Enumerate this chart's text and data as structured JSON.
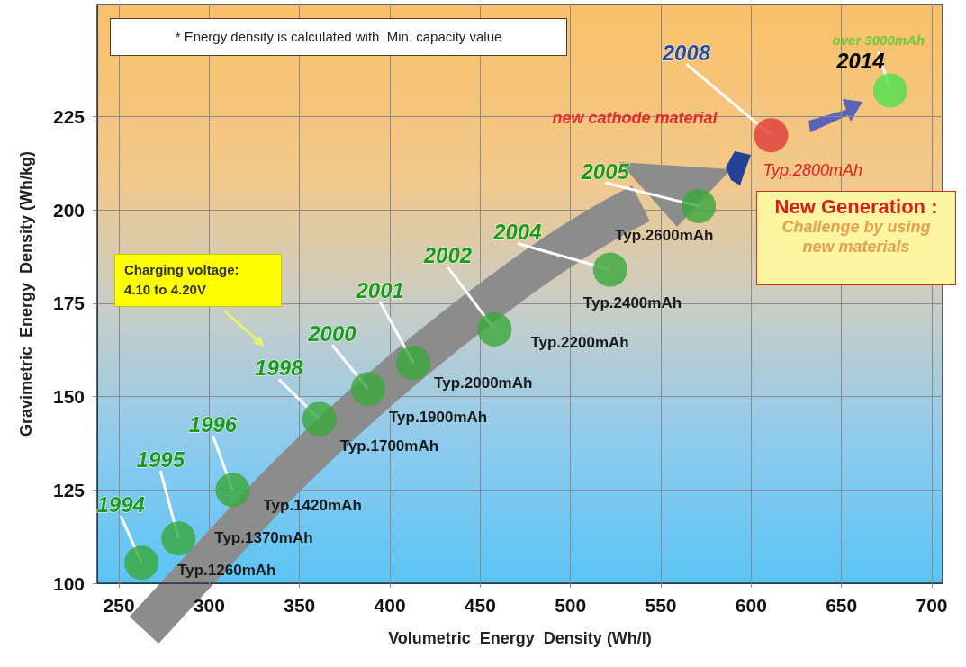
{
  "chart_data": {
    "type": "scatter",
    "xlabel": "Volumetric  Energy  Density (Wh/l)",
    "ylabel": "Gravimetric  Energy  Density (Wh/kg)",
    "x": [
      262.5,
      283,
      313,
      361,
      388,
      413,
      458,
      522,
      571,
      611,
      677
    ],
    "values": [
      105.5,
      112,
      125,
      144,
      152,
      159,
      168,
      184,
      201,
      220,
      232
    ],
    "colors": [
      "#3aa83a",
      "#3aa83a",
      "#3aa83a",
      "#3aa83a",
      "#3aa83a",
      "#3aa83a",
      "#3aa83a",
      "#3aa83a",
      "#3aa83a",
      "#e03a3a",
      "#4de04d"
    ],
    "marker": "circle",
    "xlim": [
      238,
      706
    ],
    "xticks": [
      250,
      300,
      350,
      400,
      450,
      500,
      550,
      600,
      650,
      700
    ],
    "ylim": [
      100,
      255
    ],
    "yticks": [
      100,
      125,
      150,
      175,
      200,
      225
    ],
    "grid": true,
    "annotations": [
      "* Energy density is calculated with  Min. capacity value",
      "Charging voltage:\n4.10 to 4.20V",
      "New Generation :",
      "Challenge by using\nnew materials",
      {
        "text": "1994",
        "x": 262.5,
        "y": 105.5
      },
      {
        "text": "1995",
        "x": 283,
        "y": 112
      },
      {
        "text": "1996",
        "x": 313,
        "y": 125
      },
      {
        "text": "1998",
        "x": 361,
        "y": 144
      },
      {
        "text": "2000",
        "x": 388,
        "y": 152
      },
      {
        "text": "2001",
        "x": 413,
        "y": 159
      },
      {
        "text": "2002",
        "x": 458,
        "y": 168
      },
      {
        "text": "2004",
        "x": 522,
        "y": 184
      },
      {
        "text": "2005",
        "x": 571,
        "y": 201
      },
      {
        "text": "2008",
        "x": 611,
        "y": 220
      },
      {
        "text": "2014",
        "x": 677,
        "y": 232
      },
      {
        "text": "Typ.1260mAh",
        "x": 262.5,
        "y": 105.5
      },
      {
        "text": "Typ.1370mAh",
        "x": 283,
        "y": 112
      },
      {
        "text": "Typ.1420mAh",
        "x": 313,
        "y": 125
      },
      {
        "text": "Typ.1700mAh",
        "x": 361,
        "y": 144
      },
      {
        "text": "Typ.1900mAh",
        "x": 388,
        "y": 152
      },
      {
        "text": "Typ.2000mAh",
        "x": 413,
        "y": 159
      },
      {
        "text": "Typ.2200mAh",
        "x": 458,
        "y": 168
      },
      {
        "text": "Typ.2400mAh",
        "x": 522,
        "y": 184
      },
      {
        "text": "Typ.2600mAh",
        "x": 571,
        "y": 201
      },
      {
        "text": "Typ.2800mAh",
        "x": 611,
        "y": 220
      },
      "new cathode material",
      {
        "text": "over 3000mAh",
        "x": 677,
        "y": 232
      }
    ]
  }
}
